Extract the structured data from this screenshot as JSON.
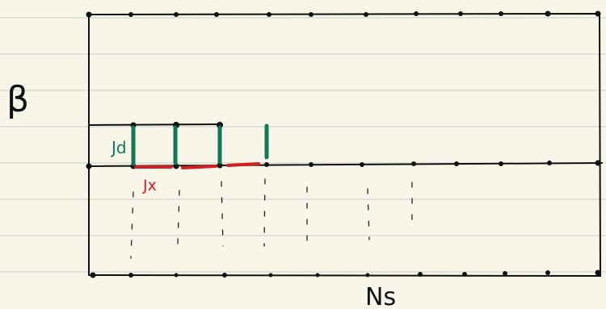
{
  "labels": {
    "beta": "β",
    "jd": "Jd",
    "jx": "Jx",
    "ns": "Ns"
  }
}
